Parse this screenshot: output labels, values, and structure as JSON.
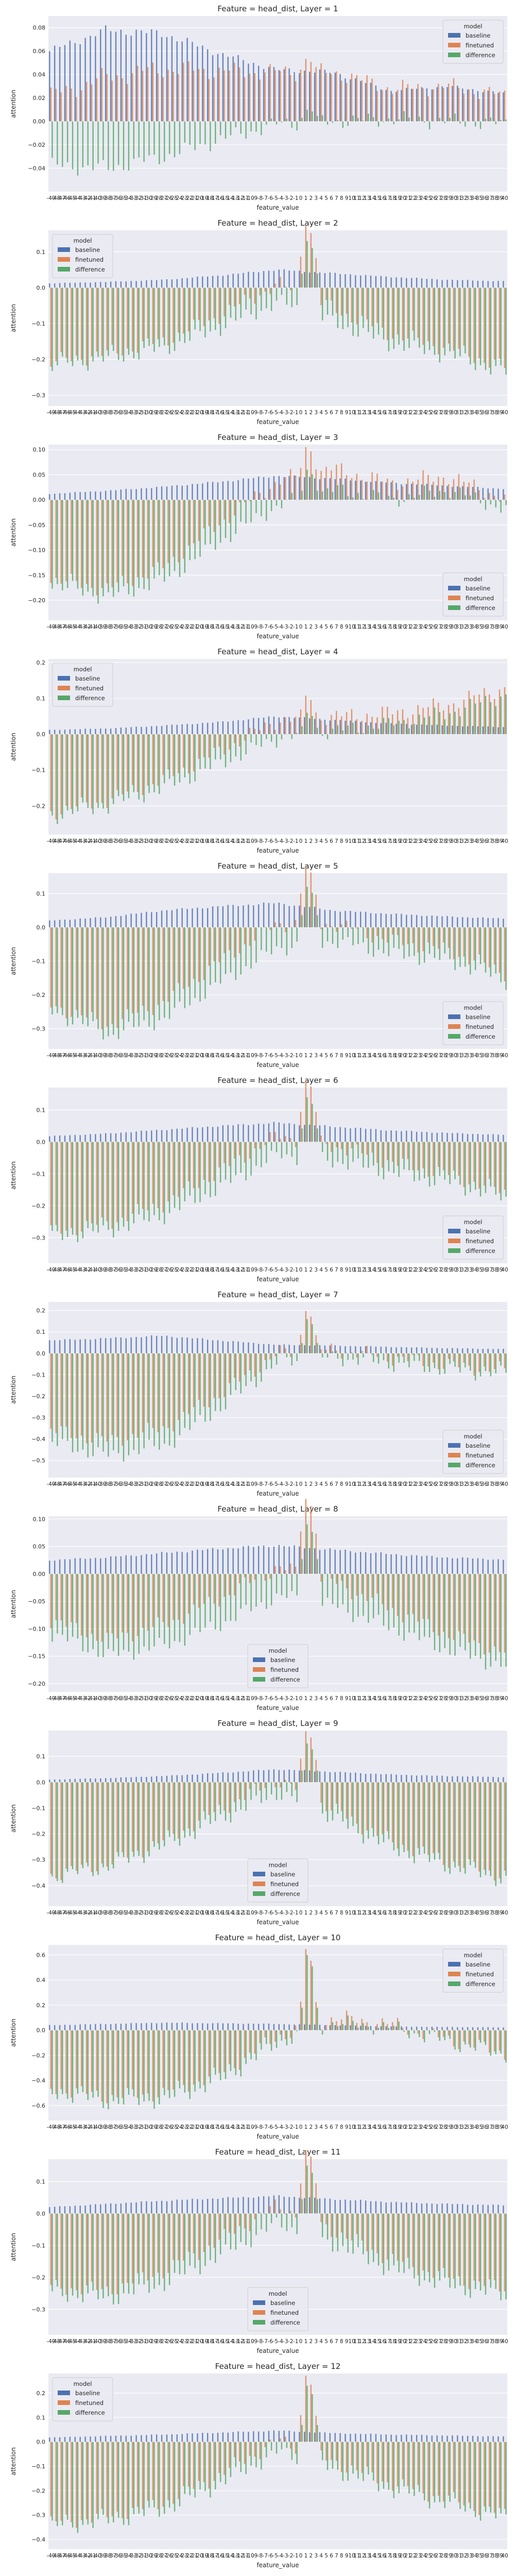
{
  "figure": {
    "legend_title": "model",
    "legend_labels": [
      "baseline",
      "finetuned",
      "difference"
    ],
    "colors": {
      "baseline": "#4c72b0",
      "finetuned": "#dd8452",
      "difference": "#55a868",
      "panel_bg": "#eaeaf2",
      "grid": "#ffffff"
    },
    "x_categories": [
      "-49",
      "-48",
      "-47",
      "-46",
      "-45",
      "-44",
      "-43",
      "-42",
      "-41",
      "-40",
      "-39",
      "-38",
      "-37",
      "-36",
      "-35",
      "-34",
      "-33",
      "-32",
      "-31",
      "-30",
      "-29",
      "-28",
      "-27",
      "-26",
      "-25",
      "-24",
      "-23",
      "-22",
      "-21",
      "-20",
      "-19",
      "-18",
      "-17",
      "-16",
      "-15",
      "-14",
      "-13",
      "-12",
      "-11",
      "-10",
      "-9",
      "-8",
      "-7",
      "-6",
      "-5",
      "-4",
      "-3",
      "-2",
      "-1",
      "0",
      "1",
      "2",
      "3",
      "4",
      "5",
      "6",
      "7",
      "8",
      "9",
      "10",
      "11",
      "12",
      "13",
      "14",
      "15",
      "16",
      "17",
      "18",
      "19",
      "20",
      "21",
      "22",
      "23",
      "24",
      "25",
      "26",
      "27",
      "28",
      "29",
      "30",
      "31",
      "32",
      "33",
      "34",
      "35",
      "36",
      "37",
      "38",
      "39",
      "40"
    ]
  },
  "chart_data": [
    {
      "type": "bar",
      "title": "Feature = head_dist, Layer = 1",
      "xlabel": "feature_value",
      "ylabel": "attention",
      "ylim": [
        -0.06,
        0.09
      ],
      "yticks": [
        -0.04,
        -0.02,
        0.0,
        0.02,
        0.04,
        0.06,
        0.08
      ],
      "ytick_labels": [
        "−0.04",
        "−0.02",
        "0.00",
        "0.02",
        "0.04",
        "0.06",
        "0.08"
      ],
      "legend_position": "upper-right",
      "grid": true,
      "profile": {
        "baseline": [
          0.06,
          0.078,
          0.075,
          0.058,
          0.044,
          0.042,
          0.026,
          0.03,
          0.024
        ],
        "difference": [
          -0.038,
          -0.04,
          -0.03,
          -0.015,
          -0.002,
          0.0,
          0.002,
          0.0,
          -0.002
        ],
        "peak": 0.01
      }
    },
    {
      "type": "bar",
      "title": "Feature = head_dist, Layer = 2",
      "xlabel": "feature_value",
      "ylabel": "attention",
      "ylim": [
        -0.33,
        0.16
      ],
      "yticks": [
        -0.3,
        -0.2,
        -0.1,
        0.0,
        0.1
      ],
      "ytick_labels": [
        "−0.3",
        "−0.2",
        "−0.1",
        "0.0",
        "0.1"
      ],
      "legend_position": "upper-left",
      "grid": true,
      "profile": {
        "baseline": [
          0.012,
          0.016,
          0.022,
          0.034,
          0.05,
          0.04,
          0.03,
          0.022,
          0.018
        ],
        "difference": [
          -0.22,
          -0.2,
          -0.17,
          -0.11,
          -0.04,
          -0.1,
          -0.16,
          -0.19,
          -0.24
        ],
        "peak": 0.13
      }
    },
    {
      "type": "bar",
      "title": "Feature = head_dist, Layer = 3",
      "xlabel": "feature_value",
      "ylabel": "attention",
      "ylim": [
        -0.24,
        0.11
      ],
      "yticks": [
        -0.2,
        -0.15,
        -0.1,
        -0.05,
        0.0,
        0.05,
        0.1
      ],
      "ytick_labels": [
        "−0.20",
        "−0.15",
        "−0.10",
        "−0.05",
        "0.00",
        "0.05",
        "0.10"
      ],
      "legend_position": "lower-right",
      "grid": true,
      "profile": {
        "baseline": [
          0.012,
          0.018,
          0.026,
          0.036,
          0.048,
          0.042,
          0.034,
          0.028,
          0.022
        ],
        "difference": [
          -0.17,
          -0.195,
          -0.16,
          -0.08,
          -0.01,
          0.02,
          0.0,
          0.02,
          -0.02
        ],
        "peak": 0.06
      }
    },
    {
      "type": "bar",
      "title": "Feature = head_dist, Layer = 4",
      "xlabel": "feature_value",
      "ylabel": "attention",
      "ylim": [
        -0.28,
        0.21
      ],
      "yticks": [
        -0.2,
        -0.1,
        0.0,
        0.1,
        0.2
      ],
      "ytick_labels": [
        "−0.2",
        "−0.1",
        "0.0",
        "0.1",
        "0.2"
      ],
      "legend_position": "upper-left",
      "grid": true,
      "profile": {
        "baseline": [
          0.012,
          0.016,
          0.024,
          0.034,
          0.05,
          0.04,
          0.03,
          0.024,
          0.02
        ],
        "difference": [
          -0.23,
          -0.2,
          -0.15,
          -0.08,
          -0.01,
          0.01,
          0.03,
          0.06,
          0.11
        ],
        "peak": 0.06
      }
    },
    {
      "type": "bar",
      "title": "Feature = head_dist, Layer = 5",
      "xlabel": "feature_value",
      "ylabel": "attention",
      "ylim": [
        -0.36,
        0.16
      ],
      "yticks": [
        -0.3,
        -0.2,
        -0.1,
        0.0,
        0.1
      ],
      "ytick_labels": [
        "−0.3",
        "−0.2",
        "−0.1",
        "0.0",
        "0.1"
      ],
      "legend_position": "lower-right",
      "grid": true,
      "profile": {
        "baseline": [
          0.02,
          0.03,
          0.05,
          0.062,
          0.072,
          0.05,
          0.04,
          0.032,
          0.026
        ],
        "difference": [
          -0.25,
          -0.32,
          -0.27,
          -0.16,
          -0.06,
          -0.04,
          -0.08,
          -0.1,
          -0.16
        ],
        "peak": 0.12
      }
    },
    {
      "type": "bar",
      "title": "Feature = head_dist, Layer = 6",
      "xlabel": "feature_value",
      "ylabel": "attention",
      "ylim": [
        -0.38,
        0.17
      ],
      "yticks": [
        -0.3,
        -0.2,
        -0.1,
        0.0,
        0.1
      ],
      "ytick_labels": [
        "−0.3",
        "−0.2",
        "−0.1",
        "0.0",
        "0.1"
      ],
      "legend_position": "lower-right",
      "grid": true,
      "profile": {
        "baseline": [
          0.018,
          0.026,
          0.038,
          0.05,
          0.06,
          0.048,
          0.036,
          0.028,
          0.022
        ],
        "difference": [
          -0.3,
          -0.28,
          -0.23,
          -0.14,
          -0.04,
          -0.06,
          -0.1,
          -0.13,
          -0.18
        ],
        "peak": 0.14
      }
    },
    {
      "type": "bar",
      "title": "Feature = head_dist, Layer = 7",
      "xlabel": "feature_value",
      "ylabel": "attention",
      "ylim": [
        -0.58,
        0.24
      ],
      "yticks": [
        -0.5,
        -0.4,
        -0.3,
        -0.2,
        -0.1,
        0.0,
        0.1,
        0.2
      ],
      "ytick_labels": [
        "−0.5",
        "−0.4",
        "−0.3",
        "−0.2",
        "−0.1",
        "0.0",
        "0.1",
        "0.2"
      ],
      "legend_position": "lower-right",
      "grid": true,
      "profile": {
        "baseline": [
          0.06,
          0.07,
          0.082,
          0.06,
          0.04,
          0.036,
          0.03,
          0.024,
          0.02
        ],
        "difference": [
          -0.42,
          -0.48,
          -0.43,
          -0.25,
          -0.04,
          -0.02,
          -0.05,
          -0.08,
          -0.1
        ],
        "peak": 0.16
      }
    },
    {
      "type": "bar",
      "title": "Feature = head_dist, Layer = 8",
      "xlabel": "feature_value",
      "ylabel": "attention",
      "ylim": [
        -0.215,
        0.105
      ],
      "yticks": [
        -0.2,
        -0.15,
        -0.1,
        -0.05,
        0.0,
        0.05,
        0.1
      ],
      "ytick_labels": [
        "−0.20",
        "−0.15",
        "−0.10",
        "−0.05",
        "0.00",
        "0.05",
        "0.10"
      ],
      "legend_position": "lower-center",
      "grid": true,
      "profile": {
        "baseline": [
          0.025,
          0.03,
          0.038,
          0.046,
          0.052,
          0.044,
          0.036,
          0.03,
          0.026
        ],
        "difference": [
          -0.11,
          -0.15,
          -0.13,
          -0.09,
          -0.04,
          -0.06,
          -0.1,
          -0.14,
          -0.17
        ],
        "peak": 0.09
      }
    },
    {
      "type": "bar",
      "title": "Feature = head_dist, Layer = 9",
      "xlabel": "feature_value",
      "ylabel": "attention",
      "ylim": [
        -0.48,
        0.2
      ],
      "yticks": [
        -0.4,
        -0.3,
        -0.2,
        -0.1,
        0.0,
        0.1
      ],
      "ytick_labels": [
        "−0.4",
        "−0.3",
        "−0.2",
        "−0.1",
        "0.0",
        "0.1"
      ],
      "legend_position": "lower-center",
      "grid": true,
      "profile": {
        "baseline": [
          0.01,
          0.016,
          0.024,
          0.036,
          0.05,
          0.04,
          0.03,
          0.024,
          0.02
        ],
        "difference": [
          -0.37,
          -0.33,
          -0.25,
          -0.14,
          -0.04,
          -0.15,
          -0.26,
          -0.33,
          -0.38
        ],
        "peak": 0.15
      }
    },
    {
      "type": "bar",
      "title": "Feature = head_dist, Layer = 10",
      "xlabel": "feature_value",
      "ylabel": "attention",
      "ylim": [
        -0.72,
        0.68
      ],
      "yticks": [
        -0.6,
        -0.4,
        -0.2,
        0.0,
        0.2,
        0.4,
        0.6
      ],
      "ytick_labels": [
        "−0.6",
        "−0.4",
        "−0.2",
        "0.0",
        "0.2",
        "0.4",
        "0.6"
      ],
      "legend_position": "upper-right",
      "grid": true,
      "profile": {
        "baseline": [
          0.04,
          0.05,
          0.06,
          0.055,
          0.05,
          0.04,
          0.03,
          0.026,
          0.022
        ],
        "difference": [
          -0.5,
          -0.58,
          -0.56,
          -0.4,
          -0.1,
          0.06,
          0.02,
          -0.1,
          -0.2
        ],
        "peak": 0.6
      }
    },
    {
      "type": "bar",
      "title": "Feature = head_dist, Layer = 11",
      "xlabel": "feature_value",
      "ylabel": "attention",
      "ylim": [
        -0.38,
        0.17
      ],
      "yticks": [
        -0.3,
        -0.2,
        -0.1,
        0.0,
        0.1
      ],
      "ytick_labels": [
        "−0.3",
        "−0.2",
        "−0.1",
        "0.0",
        "0.1"
      ],
      "legend_position": "lower-center",
      "grid": true,
      "profile": {
        "baseline": [
          0.02,
          0.03,
          0.04,
          0.048,
          0.055,
          0.045,
          0.036,
          0.03,
          0.026
        ],
        "difference": [
          -0.25,
          -0.27,
          -0.22,
          -0.13,
          -0.03,
          -0.1,
          -0.18,
          -0.23,
          -0.26
        ],
        "peak": 0.15
      }
    },
    {
      "type": "bar",
      "title": "Feature = head_dist, Layer = 12",
      "xlabel": "feature_value",
      "ylabel": "attention",
      "ylim": [
        -0.44,
        0.28
      ],
      "yticks": [
        -0.4,
        -0.3,
        -0.2,
        -0.1,
        0.0,
        0.1,
        0.2
      ],
      "ytick_labels": [
        "−0.4",
        "−0.3",
        "−0.2",
        "−0.1",
        "0.0",
        "0.1",
        "0.2"
      ],
      "legend_position": "upper-left",
      "grid": true,
      "profile": {
        "baseline": [
          0.018,
          0.024,
          0.03,
          0.038,
          0.046,
          0.036,
          0.03,
          0.026,
          0.022
        ],
        "difference": [
          -0.35,
          -0.33,
          -0.28,
          -0.17,
          -0.04,
          -0.12,
          -0.2,
          -0.26,
          -0.32
        ],
        "peak": 0.23
      }
    }
  ]
}
